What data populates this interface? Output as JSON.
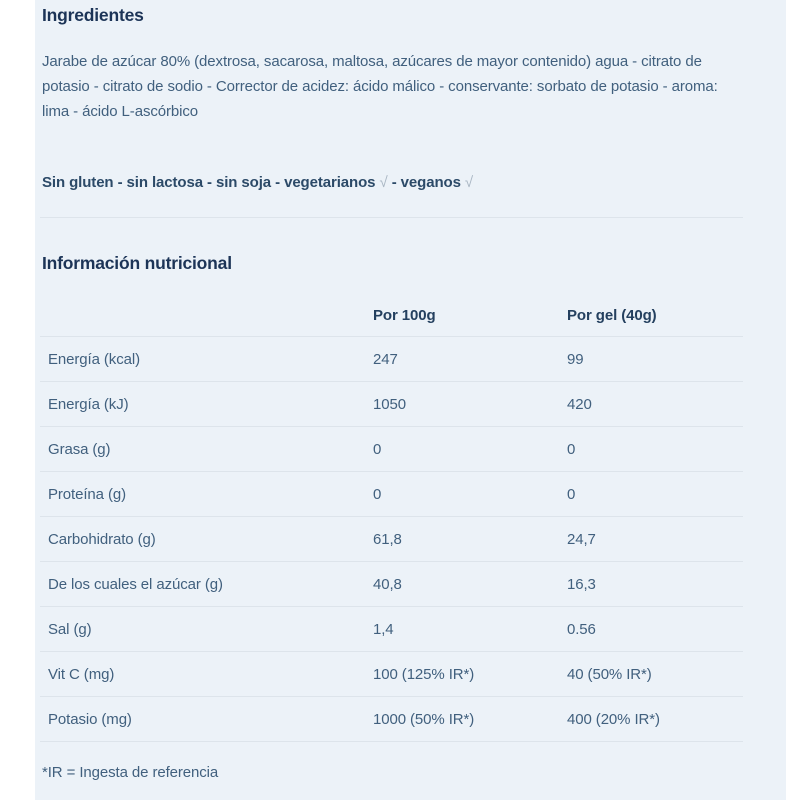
{
  "ingredients": {
    "title": "Ingredientes",
    "body": "Jarabe de azúcar 80% (dextrosa, sacarosa, maltosa, azúcares de mayor contenido) agua - citrato de potasio - citrato de sodio - Corrector de acidez: ácido málico - conservante: sorbato de potasio - aroma: lima - ácido L-ascórbico",
    "claims": {
      "part1": "Sin gluten - sin lactosa - sin soja - vegetarianos",
      "check1": "√",
      "part2": "- veganos",
      "check2": "√"
    }
  },
  "nutrition": {
    "title": "Información nutricional",
    "table": {
      "col_per_100g": "Por 100g",
      "col_per_gel": "Por gel (40g)",
      "rows": [
        {
          "label": "Energía (kcal)",
          "per_100g": "247",
          "per_gel": "99"
        },
        {
          "label": "Energía (kJ)",
          "per_100g": "1050",
          "per_gel": "420"
        },
        {
          "label": "Grasa (g)",
          "per_100g": "0",
          "per_gel": "0"
        },
        {
          "label": "Proteína (g)",
          "per_100g": "0",
          "per_gel": "0"
        },
        {
          "label": "Carbohidrato (g)",
          "per_100g": "61,8",
          "per_gel": "24,7"
        },
        {
          "label": "De los cuales el azúcar (g)",
          "per_100g": "40,8",
          "per_gel": "16,3"
        },
        {
          "label": "Sal (g)",
          "per_100g": "1,4",
          "per_gel": "0.56"
        },
        {
          "label": "Vit C (mg)",
          "per_100g": "100 (125% IR*)",
          "per_gel": "40 (50% IR*)"
        },
        {
          "label": "Potasio (mg)",
          "per_100g": "1000 (50% IR*)",
          "per_gel": "400 (20% IR*)"
        }
      ]
    },
    "footnote": "*IR = Ingesta de referencia"
  },
  "colors": {
    "page_background": "#ffffff",
    "panel_background": "#ecf2f8",
    "heading_text": "#1c3457",
    "body_text": "#41607e",
    "claims_text": "#2c4a68",
    "checkmark": "#a9b6c3",
    "divider": "#dde4eb"
  }
}
